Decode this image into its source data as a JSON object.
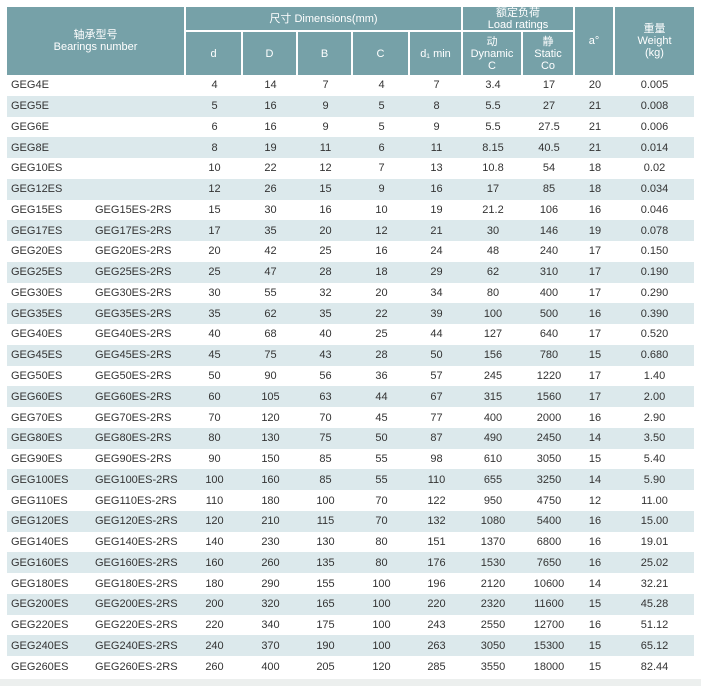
{
  "table": {
    "colors": {
      "header_bg": "#76a1a8",
      "stripe_bg": "#dce9ec",
      "row_bg": "#ffffff",
      "header_text": "#ffffff",
      "body_text": "#333333"
    },
    "header": {
      "bearings_number": "轴承型号\nBearings number",
      "dimensions_group": "尺寸  Dimensions(mm)",
      "load_ratings_group": "额定负荷\nLoad ratings",
      "col_d": "d",
      "col_D": "D",
      "col_B": "B",
      "col_C": "C",
      "col_d1_min": "d₁ min",
      "col_dynamic": "动\nDynamic\nC",
      "col_static": "静\nStatic\nCo",
      "col_a": "a°",
      "col_weight": "重量\nWeight\n(kg)"
    },
    "rows": [
      {
        "model": "GEG4E",
        "model_2rs": "",
        "d": "4",
        "D": "14",
        "B": "7",
        "C": "4",
        "d1_min": "7",
        "dynamic_c": "3.4",
        "static_co": "17",
        "a_deg": "20",
        "weight_kg": "0.005"
      },
      {
        "model": "GEG5E",
        "model_2rs": "",
        "d": "5",
        "D": "16",
        "B": "9",
        "C": "5",
        "d1_min": "8",
        "dynamic_c": "5.5",
        "static_co": "27",
        "a_deg": "21",
        "weight_kg": "0.008"
      },
      {
        "model": "GEG6E",
        "model_2rs": "",
        "d": "6",
        "D": "16",
        "B": "9",
        "C": "5",
        "d1_min": "9",
        "dynamic_c": "5.5",
        "static_co": "27.5",
        "a_deg": "21",
        "weight_kg": "0.006"
      },
      {
        "model": "GEG8E",
        "model_2rs": "",
        "d": "8",
        "D": "19",
        "B": "11",
        "C": "6",
        "d1_min": "11",
        "dynamic_c": "8.15",
        "static_co": "40.5",
        "a_deg": "21",
        "weight_kg": "0.014"
      },
      {
        "model": "GEG10ES",
        "model_2rs": "",
        "d": "10",
        "D": "22",
        "B": "12",
        "C": "7",
        "d1_min": "13",
        "dynamic_c": "10.8",
        "static_co": "54",
        "a_deg": "18",
        "weight_kg": "0.02"
      },
      {
        "model": "GEG12ES",
        "model_2rs": "",
        "d": "12",
        "D": "26",
        "B": "15",
        "C": "9",
        "d1_min": "16",
        "dynamic_c": "17",
        "static_co": "85",
        "a_deg": "18",
        "weight_kg": "0.034"
      },
      {
        "model": "GEG15ES",
        "model_2rs": "GEG15ES-2RS",
        "d": "15",
        "D": "30",
        "B": "16",
        "C": "10",
        "d1_min": "19",
        "dynamic_c": "21.2",
        "static_co": "106",
        "a_deg": "16",
        "weight_kg": "0.046"
      },
      {
        "model": "GEG17ES",
        "model_2rs": "GEG17ES-2RS",
        "d": "17",
        "D": "35",
        "B": "20",
        "C": "12",
        "d1_min": "21",
        "dynamic_c": "30",
        "static_co": "146",
        "a_deg": "19",
        "weight_kg": "0.078"
      },
      {
        "model": "GEG20ES",
        "model_2rs": "GEG20ES-2RS",
        "d": "20",
        "D": "42",
        "B": "25",
        "C": "16",
        "d1_min": "24",
        "dynamic_c": "48",
        "static_co": "240",
        "a_deg": "17",
        "weight_kg": "0.150"
      },
      {
        "model": "GEG25ES",
        "model_2rs": "GEG25ES-2RS",
        "d": "25",
        "D": "47",
        "B": "28",
        "C": "18",
        "d1_min": "29",
        "dynamic_c": "62",
        "static_co": "310",
        "a_deg": "17",
        "weight_kg": "0.190"
      },
      {
        "model": "GEG30ES",
        "model_2rs": "GEG30ES-2RS",
        "d": "30",
        "D": "55",
        "B": "32",
        "C": "20",
        "d1_min": "34",
        "dynamic_c": "80",
        "static_co": "400",
        "a_deg": "17",
        "weight_kg": "0.290"
      },
      {
        "model": "GEG35ES",
        "model_2rs": "GEG35ES-2RS",
        "d": "35",
        "D": "62",
        "B": "35",
        "C": "22",
        "d1_min": "39",
        "dynamic_c": "100",
        "static_co": "500",
        "a_deg": "16",
        "weight_kg": "0.390"
      },
      {
        "model": "GEG40ES",
        "model_2rs": "GEG40ES-2RS",
        "d": "40",
        "D": "68",
        "B": "40",
        "C": "25",
        "d1_min": "44",
        "dynamic_c": "127",
        "static_co": "640",
        "a_deg": "17",
        "weight_kg": "0.520"
      },
      {
        "model": "GEG45ES",
        "model_2rs": "GEG45ES-2RS",
        "d": "45",
        "D": "75",
        "B": "43",
        "C": "28",
        "d1_min": "50",
        "dynamic_c": "156",
        "static_co": "780",
        "a_deg": "15",
        "weight_kg": "0.680"
      },
      {
        "model": "GEG50ES",
        "model_2rs": "GEG50ES-2RS",
        "d": "50",
        "D": "90",
        "B": "56",
        "C": "36",
        "d1_min": "57",
        "dynamic_c": "245",
        "static_co": "1220",
        "a_deg": "17",
        "weight_kg": "1.40"
      },
      {
        "model": "GEG60ES",
        "model_2rs": "GEG60ES-2RS",
        "d": "60",
        "D": "105",
        "B": "63",
        "C": "44",
        "d1_min": "67",
        "dynamic_c": "315",
        "static_co": "1560",
        "a_deg": "17",
        "weight_kg": "2.00"
      },
      {
        "model": "GEG70ES",
        "model_2rs": "GEG70ES-2RS",
        "d": "70",
        "D": "120",
        "B": "70",
        "C": "45",
        "d1_min": "77",
        "dynamic_c": "400",
        "static_co": "2000",
        "a_deg": "16",
        "weight_kg": "2.90"
      },
      {
        "model": "GEG80ES",
        "model_2rs": "GEG80ES-2RS",
        "d": "80",
        "D": "130",
        "B": "75",
        "C": "50",
        "d1_min": "87",
        "dynamic_c": "490",
        "static_co": "2450",
        "a_deg": "14",
        "weight_kg": "3.50"
      },
      {
        "model": "GEG90ES",
        "model_2rs": "GEG90ES-2RS",
        "d": "90",
        "D": "150",
        "B": "85",
        "C": "55",
        "d1_min": "98",
        "dynamic_c": "610",
        "static_co": "3050",
        "a_deg": "15",
        "weight_kg": "5.40"
      },
      {
        "model": "GEG100ES",
        "model_2rs": "GEG100ES-2RS",
        "d": "100",
        "D": "160",
        "B": "85",
        "C": "55",
        "d1_min": "110",
        "dynamic_c": "655",
        "static_co": "3250",
        "a_deg": "14",
        "weight_kg": "5.90"
      },
      {
        "model": "GEG110ES",
        "model_2rs": "GEG110ES-2RS",
        "d": "110",
        "D": "180",
        "B": "100",
        "C": "70",
        "d1_min": "122",
        "dynamic_c": "950",
        "static_co": "4750",
        "a_deg": "12",
        "weight_kg": "11.00"
      },
      {
        "model": "GEG120ES",
        "model_2rs": "GEG120ES-2RS",
        "d": "120",
        "D": "210",
        "B": "115",
        "C": "70",
        "d1_min": "132",
        "dynamic_c": "1080",
        "static_co": "5400",
        "a_deg": "16",
        "weight_kg": "15.00"
      },
      {
        "model": "GEG140ES",
        "model_2rs": "GEG140ES-2RS",
        "d": "140",
        "D": "230",
        "B": "130",
        "C": "80",
        "d1_min": "151",
        "dynamic_c": "1370",
        "static_co": "6800",
        "a_deg": "16",
        "weight_kg": "19.01"
      },
      {
        "model": "GEG160ES",
        "model_2rs": "GEG160ES-2RS",
        "d": "160",
        "D": "260",
        "B": "135",
        "C": "80",
        "d1_min": "176",
        "dynamic_c": "1530",
        "static_co": "7650",
        "a_deg": "16",
        "weight_kg": "25.02"
      },
      {
        "model": "GEG180ES",
        "model_2rs": "GEG180ES-2RS",
        "d": "180",
        "D": "290",
        "B": "155",
        "C": "100",
        "d1_min": "196",
        "dynamic_c": "2120",
        "static_co": "10600",
        "a_deg": "14",
        "weight_kg": "32.21"
      },
      {
        "model": "GEG200ES",
        "model_2rs": "GEG200ES-2RS",
        "d": "200",
        "D": "320",
        "B": "165",
        "C": "100",
        "d1_min": "220",
        "dynamic_c": "2320",
        "static_co": "11600",
        "a_deg": "15",
        "weight_kg": "45.28"
      },
      {
        "model": "GEG220ES",
        "model_2rs": "GEG220ES-2RS",
        "d": "220",
        "D": "340",
        "B": "175",
        "C": "100",
        "d1_min": "243",
        "dynamic_c": "2550",
        "static_co": "12700",
        "a_deg": "16",
        "weight_kg": "51.12"
      },
      {
        "model": "GEG240ES",
        "model_2rs": "GEG240ES-2RS",
        "d": "240",
        "D": "370",
        "B": "190",
        "C": "100",
        "d1_min": "263",
        "dynamic_c": "3050",
        "static_co": "15300",
        "a_deg": "15",
        "weight_kg": "65.12"
      },
      {
        "model": "GEG260ES",
        "model_2rs": "GEG260ES-2RS",
        "d": "260",
        "D": "400",
        "B": "205",
        "C": "120",
        "d1_min": "285",
        "dynamic_c": "3550",
        "static_co": "18000",
        "a_deg": "15",
        "weight_kg": "82.44"
      }
    ]
  }
}
